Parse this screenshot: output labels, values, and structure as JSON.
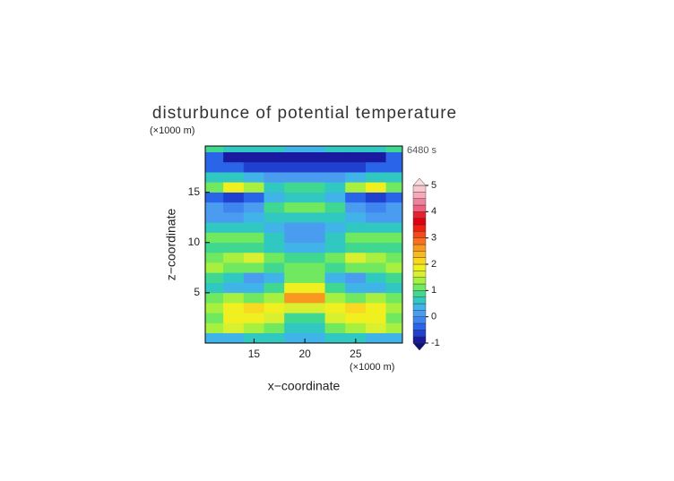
{
  "chart_data": {
    "type": "contourf",
    "title": "disturbunce of potential temperature",
    "y_unit": "(×1000 m)",
    "x_unit": "(×1000 m)",
    "time_label": "6480 s",
    "xlabel": "x−coordinate",
    "ylabel": "z−coordinate",
    "xlim": [
      10.2,
      29.6
    ],
    "ylim": [
      0,
      19.6
    ],
    "xticks": [
      15,
      20,
      25
    ],
    "yticks": [
      5,
      10,
      15
    ],
    "x": [
      11,
      13,
      15,
      17,
      19,
      21,
      23,
      25,
      27,
      29
    ],
    "y": [
      0.5,
      1.5,
      2.5,
      3.5,
      4.5,
      5.5,
      6.5,
      7.5,
      8.5,
      9.5,
      10.5,
      11.5,
      12.5,
      13.5,
      14.5,
      15.5,
      16.5,
      17.5,
      18.5,
      19.5
    ],
    "z": [
      [
        0.3,
        0.4,
        0.5,
        0.5,
        0.4,
        0.4,
        0.5,
        0.5,
        0.4,
        0.3
      ],
      [
        1.3,
        1.5,
        1.4,
        1.0,
        0.6,
        0.6,
        1.0,
        1.4,
        1.5,
        1.3
      ],
      [
        1.2,
        1.8,
        1.9,
        1.6,
        0.8,
        0.8,
        1.6,
        1.9,
        1.8,
        1.2
      ],
      [
        1.4,
        1.9,
        2.1,
        1.8,
        1.6,
        1.6,
        1.8,
        2.1,
        1.9,
        1.4
      ],
      [
        1.1,
        1.3,
        1.2,
        1.4,
        2.6,
        2.6,
        1.4,
        1.2,
        1.3,
        1.1
      ],
      [
        0.6,
        0.3,
        0.4,
        0.9,
        1.8,
        1.8,
        0.9,
        0.4,
        0.3,
        0.6
      ],
      [
        0.9,
        0.5,
        0.2,
        0.3,
        1.0,
        1.0,
        0.3,
        0.2,
        0.5,
        0.9
      ],
      [
        1.4,
        1.2,
        1.1,
        0.9,
        1.0,
        1.0,
        0.9,
        1.1,
        1.2,
        1.4
      ],
      [
        1.1,
        1.3,
        1.5,
        1.1,
        0.9,
        0.9,
        1.1,
        1.5,
        1.3,
        1.1
      ],
      [
        0.8,
        0.9,
        0.9,
        0.7,
        0.3,
        0.3,
        0.7,
        0.9,
        0.9,
        0.8
      ],
      [
        1.0,
        1.1,
        1.0,
        0.6,
        0.2,
        0.2,
        0.6,
        1.0,
        1.1,
        1.0
      ],
      [
        0.6,
        0.7,
        0.6,
        0.4,
        0.1,
        0.1,
        0.4,
        0.6,
        0.7,
        0.6
      ],
      [
        0.2,
        0.1,
        0.3,
        0.6,
        0.7,
        0.7,
        0.6,
        0.3,
        0.1,
        0.2
      ],
      [
        0.0,
        -0.2,
        0.2,
        0.8,
        1.2,
        1.2,
        0.8,
        0.2,
        -0.2,
        0.0
      ],
      [
        -0.4,
        -0.7,
        -0.3,
        0.4,
        0.6,
        0.6,
        0.4,
        -0.3,
        -0.7,
        -0.4
      ],
      [
        1.2,
        1.9,
        1.3,
        0.7,
        0.9,
        0.9,
        0.7,
        1.3,
        1.9,
        1.2
      ],
      [
        0.5,
        0.6,
        0.4,
        0.2,
        0.1,
        0.1,
        0.2,
        0.4,
        0.6,
        0.5
      ],
      [
        -0.3,
        -0.5,
        -0.6,
        -0.6,
        -0.6,
        -0.6,
        -0.6,
        -0.6,
        -0.5,
        -0.3
      ],
      [
        -0.5,
        -0.8,
        -0.9,
        -0.9,
        -0.9,
        -0.9,
        -0.9,
        -0.9,
        -0.8,
        -0.5
      ],
      [
        0.8,
        0.7,
        0.6,
        0.5,
        0.3,
        0.3,
        0.5,
        0.6,
        0.7,
        0.8
      ]
    ],
    "levels": [
      -1,
      -0.75,
      -0.5,
      -0.25,
      0,
      0.25,
      0.5,
      0.75,
      1,
      1.25,
      1.5,
      1.75,
      2,
      2.25,
      2.5,
      2.75,
      3,
      3.25,
      3.5,
      3.75,
      4,
      4.25,
      4.5,
      4.75,
      5
    ],
    "colors": [
      "#1a1aa0",
      "#2040d0",
      "#2a64e8",
      "#3f85f0",
      "#4a9cf0",
      "#40b4e8",
      "#30c8c0",
      "#40d890",
      "#70e860",
      "#a8f040",
      "#d8f030",
      "#f0f020",
      "#f8d820",
      "#f8b820",
      "#f89820",
      "#f87020",
      "#f84818",
      "#f02010",
      "#e00010",
      "#e82030",
      "#f06080",
      "#f080a0",
      "#f8a8b8",
      "#f8c8d0"
    ],
    "under_color": "#10107a",
    "over_color": "#fadce0",
    "cbar_ticks": [
      -1,
      0,
      1,
      2,
      3,
      4,
      5
    ]
  }
}
